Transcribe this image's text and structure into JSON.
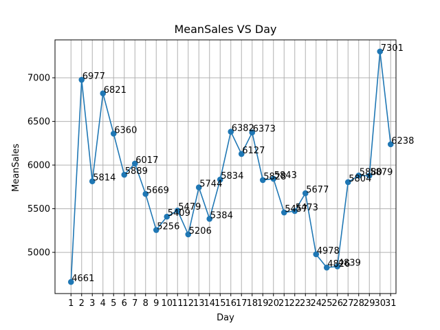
{
  "chart_data": {
    "type": "line",
    "title": "MeanSales VS Day",
    "xlabel": "Day",
    "ylabel": "MeanSales",
    "grid": true,
    "color": "#1f77b4",
    "categories": [
      "1",
      "2",
      "3",
      "4",
      "5",
      "6",
      "7",
      "8",
      "9",
      "10",
      "11",
      "12",
      "13",
      "14",
      "15",
      "16",
      "17",
      "18",
      "19",
      "20",
      "21",
      "22",
      "23",
      "24",
      "25",
      "26",
      "27",
      "28",
      "29",
      "30",
      "31"
    ],
    "x": [
      1,
      2,
      3,
      4,
      5,
      6,
      7,
      8,
      9,
      10,
      11,
      12,
      13,
      14,
      15,
      16,
      17,
      18,
      19,
      20,
      21,
      22,
      23,
      24,
      25,
      26,
      27,
      28,
      29,
      30,
      31
    ],
    "values": [
      4661,
      6977,
      5814,
      6821,
      6360,
      5889,
      6017,
      5669,
      5256,
      5409,
      5479,
      5206,
      5744,
      5384,
      5834,
      6382,
      6127,
      6373,
      5828,
      5843,
      5457,
      5473,
      5677,
      4978,
      4826,
      4839,
      5804,
      5880,
      5879,
      7301,
      6238
    ],
    "yticks": [
      5000,
      5500,
      6000,
      6500,
      7000
    ],
    "xlim": [
      -0.5,
      31.5
    ],
    "ylim": [
      4528,
      7434
    ]
  }
}
